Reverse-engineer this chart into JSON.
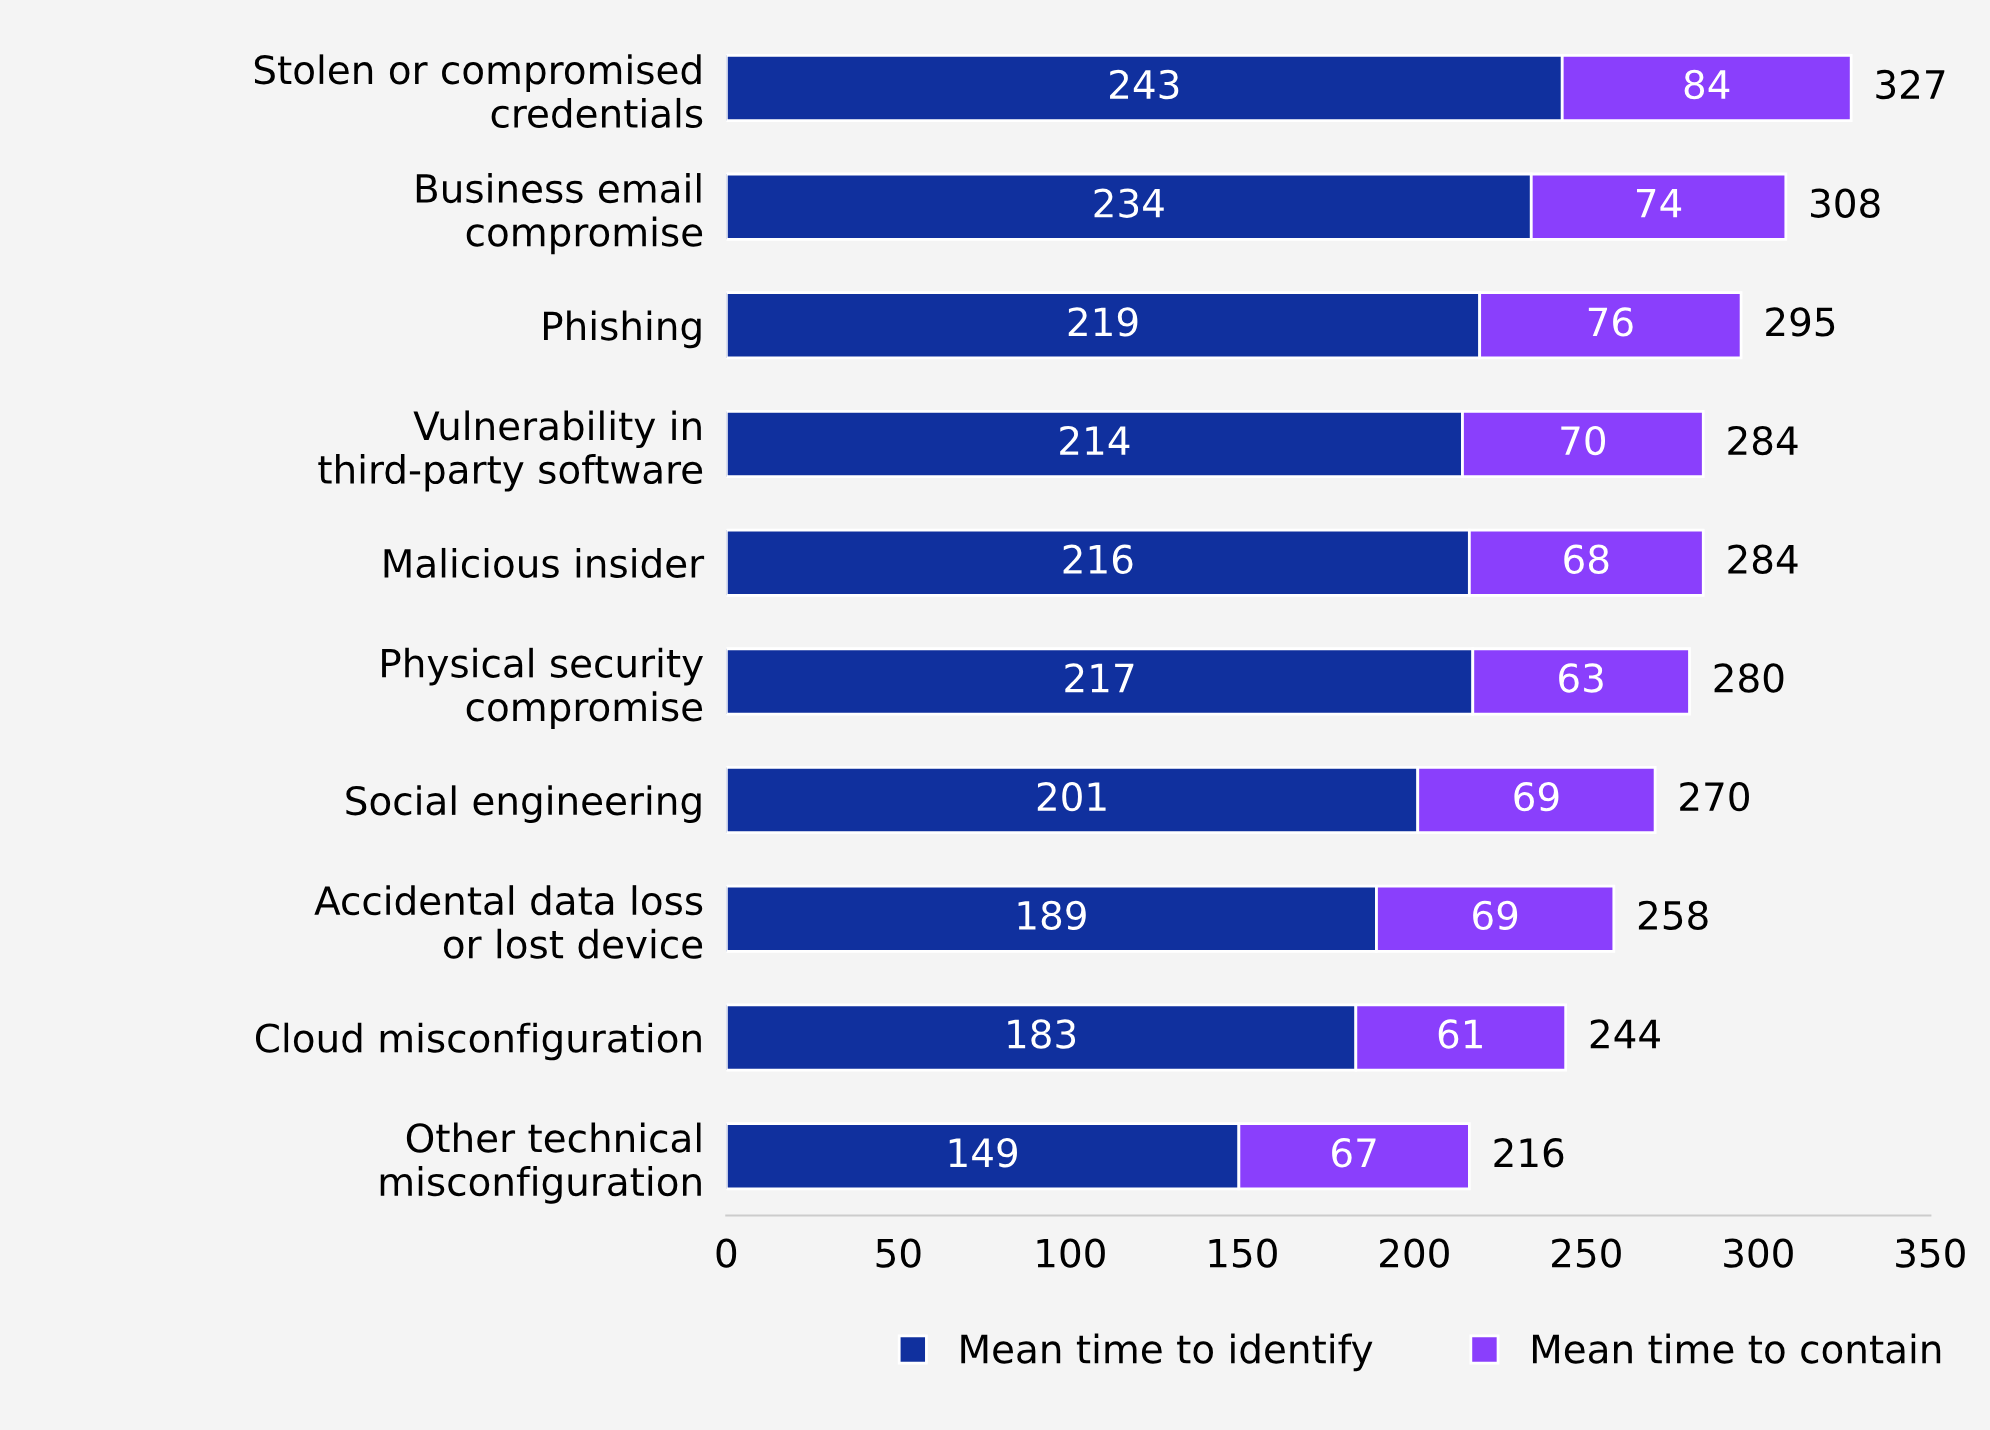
{
  "chart_data": {
    "type": "bar",
    "orientation": "horizontal",
    "stacked": true,
    "categories": [
      "Stolen or compromised\ncredentials",
      "Business email\ncompromise",
      "Phishing",
      "Vulnerability in\nthird-party software",
      "Malicious insider",
      "Physical security\ncompromise",
      "Social engineering",
      "Accidental data loss\nor lost device",
      "Cloud misconfiguration",
      "Other technical\nmisconfiguration"
    ],
    "series": [
      {
        "name": "Mean time to identify",
        "color": "#10309e",
        "values": [
          243,
          234,
          219,
          214,
          216,
          217,
          201,
          189,
          183,
          149
        ]
      },
      {
        "name": "Mean time to contain",
        "color": "#8a3ffc",
        "values": [
          84,
          74,
          76,
          70,
          68,
          63,
          69,
          69,
          61,
          67
        ]
      }
    ],
    "totals": [
      "327",
      "308",
      "295",
      "284",
      "284",
      "280",
      "270",
      "258",
      "244",
      "216"
    ],
    "data_labels": true,
    "xlim": [
      0,
      350
    ],
    "xticks": [
      0,
      50,
      100,
      150,
      200,
      250,
      300,
      350
    ],
    "grid": false,
    "legend": "bottom"
  }
}
